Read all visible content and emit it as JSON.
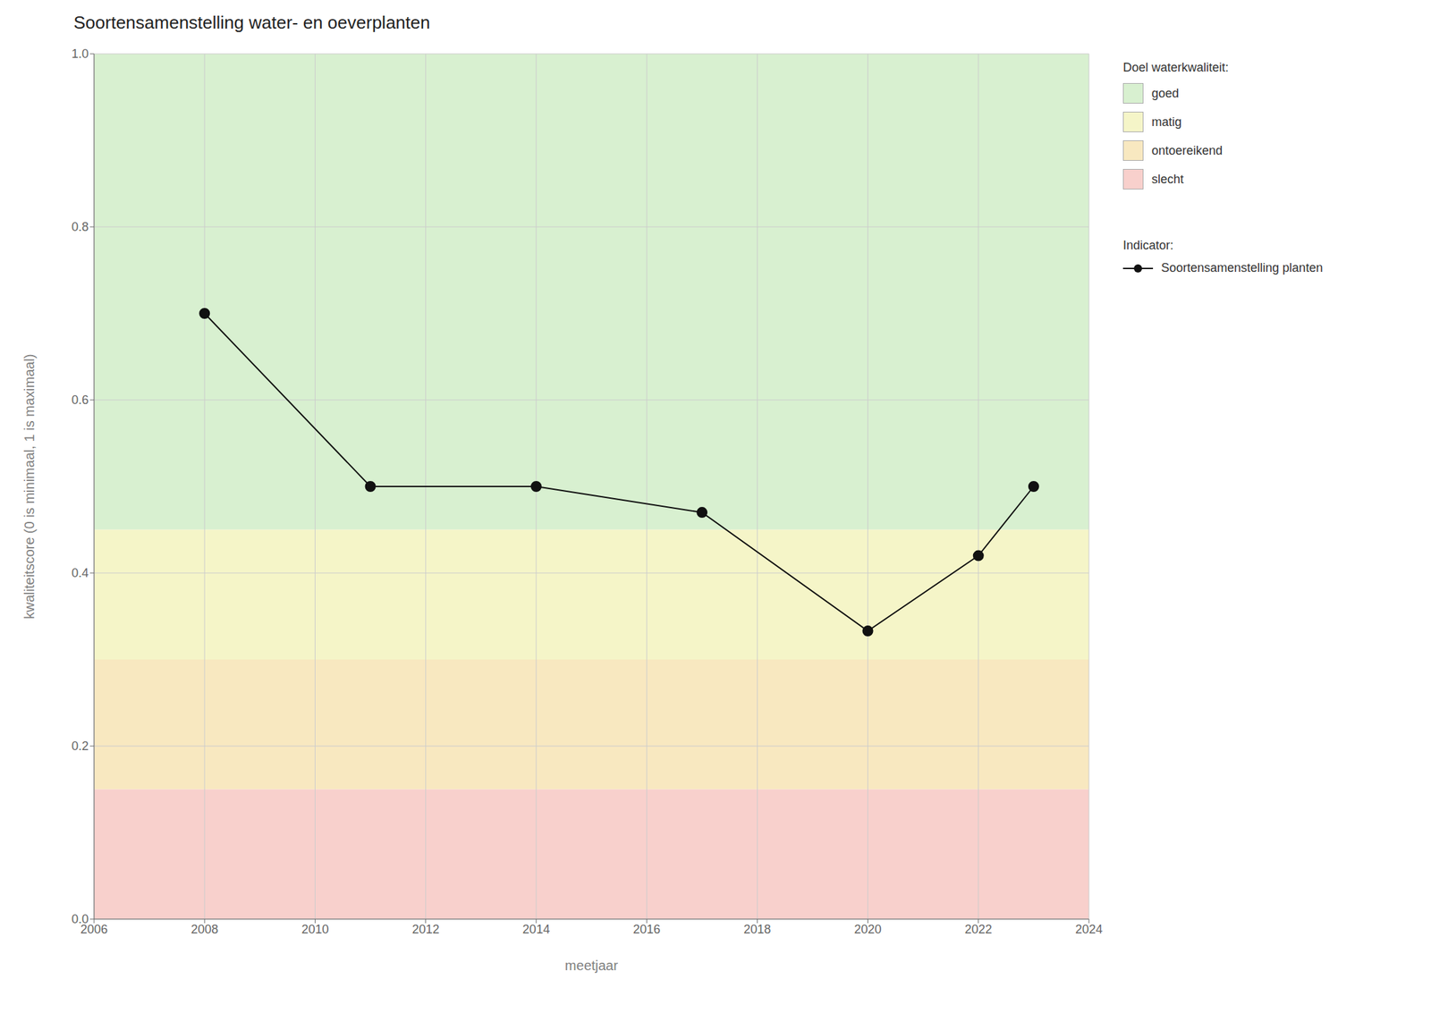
{
  "chart_data": {
    "type": "line",
    "title": "Soortensamenstelling water- en oeverplanten",
    "x_label": "meetjaar",
    "y_label": "kwaliteitscore (0 is minimaal, 1 is maximaal)",
    "x": [
      2008,
      2011,
      2014,
      2017,
      2020,
      2022,
      2023
    ],
    "series": [
      {
        "name": "Soortensamenstelling planten",
        "color": "#111111",
        "values": [
          0.7,
          0.5,
          0.5,
          0.47,
          0.333,
          0.42,
          0.5
        ],
        "marker": "circle",
        "line_style": "solid"
      }
    ],
    "series_title": "Indicator:",
    "xlim": [
      2006,
      2024
    ],
    "xticks": [
      2006,
      2008,
      2010,
      2012,
      2014,
      2016,
      2018,
      2020,
      2022,
      2024
    ],
    "ylim": [
      0.0,
      1.0
    ],
    "yticks": [
      {
        "value": 0.0,
        "label": "0.0"
      },
      0.2,
      0.4,
      0.6,
      0.8,
      {
        "value": 1.0,
        "label": "1.0"
      }
    ],
    "grid": true,
    "legend": "right",
    "bands_title": "Doel waterkwaliteit:",
    "bands": [
      {
        "name": "goed",
        "from": 0.45,
        "to": 1.0,
        "color": "#d8f0d0"
      },
      {
        "name": "matig",
        "from": 0.3,
        "to": 0.45,
        "color": "#f5f5c8"
      },
      {
        "name": "ontoereikend",
        "from": 0.15,
        "to": 0.3,
        "color": "#f8e8c0"
      },
      {
        "name": "slecht",
        "from": 0.0,
        "to": 0.15,
        "color": "#f8d0cc"
      }
    ]
  }
}
